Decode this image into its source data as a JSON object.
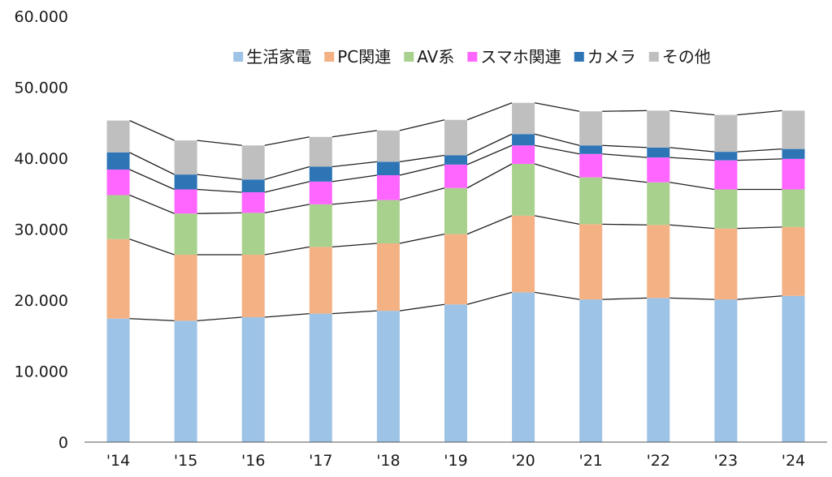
{
  "chart_data": {
    "type": "bar",
    "stacked": true,
    "title": "",
    "xlabel": "",
    "ylabel": "",
    "ylim": [
      0,
      60000
    ],
    "y_ticks": [
      0,
      10000,
      20000,
      30000,
      40000,
      50000,
      60000
    ],
    "y_tick_labels": [
      "0",
      "10.000",
      "20.000",
      "30.000",
      "40.000",
      "50.000",
      "60.000"
    ],
    "categories": [
      "'14",
      "'15",
      "'16",
      "'17",
      "'18",
      "'19",
      "'20",
      "'21",
      "'22",
      "'23",
      "'24"
    ],
    "grid": false,
    "legend_position": "top",
    "connector_lines": true,
    "series": [
      {
        "name": "生活家電",
        "color": "#9dc3e6",
        "values": [
          17400,
          17100,
          17600,
          18100,
          18500,
          19400,
          21100,
          20100,
          20300,
          20100,
          20600
        ]
      },
      {
        "name": "PC関連",
        "color": "#f4b183",
        "values": [
          11200,
          9300,
          8800,
          9400,
          9500,
          9900,
          10800,
          10600,
          10300,
          10000,
          9700
        ]
      },
      {
        "name": "AV系",
        "color": "#a9d18e",
        "values": [
          6200,
          5800,
          5900,
          6000,
          6100,
          6500,
          7300,
          6600,
          6000,
          5500,
          5300
        ]
      },
      {
        "name": "スマホ関連",
        "color": "#ff66ff",
        "values": [
          3600,
          3400,
          2900,
          3200,
          3500,
          3300,
          2600,
          3300,
          3500,
          4100,
          4300
        ]
      },
      {
        "name": "カメラ",
        "color": "#2e75b6",
        "values": [
          2400,
          2100,
          1800,
          2100,
          1900,
          1300,
          1600,
          1200,
          1400,
          1200,
          1400
        ]
      },
      {
        "name": "その他",
        "color": "#bfbfbf",
        "values": [
          4500,
          4800,
          4800,
          4200,
          4400,
          5000,
          4400,
          4800,
          5200,
          5200,
          5400
        ]
      }
    ]
  }
}
